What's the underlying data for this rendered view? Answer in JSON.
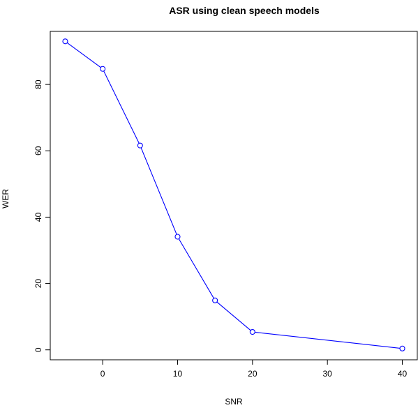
{
  "chart_data": {
    "type": "line",
    "title": "ASR using clean speech models",
    "xlabel": "SNR",
    "ylabel": "WER",
    "xlim": [
      -7,
      42
    ],
    "ylim": [
      -3,
      96
    ],
    "x_ticks": [
      0,
      10,
      20,
      30,
      40
    ],
    "y_ticks": [
      0,
      20,
      40,
      60,
      80
    ],
    "grid": false,
    "series": [
      {
        "color": "#0000ff",
        "marker": "open-circle",
        "x": [
          -5,
          0,
          5,
          10,
          15,
          20,
          40
        ],
        "y": [
          93,
          84.7,
          61.6,
          34.1,
          14.9,
          5.4,
          0.4
        ]
      }
    ]
  }
}
